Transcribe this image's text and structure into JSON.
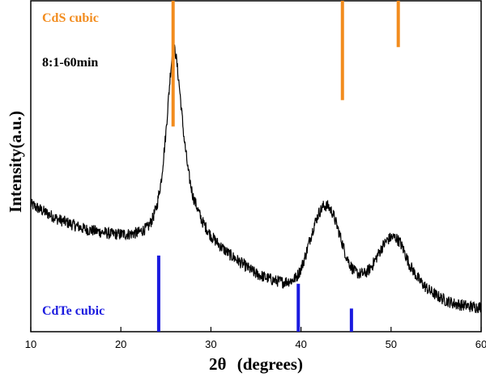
{
  "chart_data": {
    "type": "line",
    "xlabel_prefix": "2θ",
    "xlabel_suffix": "(degrees)",
    "ylabel": "Intensity(a.u.)",
    "xlim": [
      10,
      60
    ],
    "xticks": [
      10,
      20,
      30,
      40,
      50,
      60
    ],
    "ylim": [
      0,
      100
    ],
    "y_tick_labels": false,
    "grid": false,
    "series": [
      {
        "name": "8:1-60min",
        "color": "#000000",
        "points": [
          [
            10,
            38.5
          ],
          [
            11,
            37.0
          ],
          [
            12,
            35.5
          ],
          [
            13,
            34.0
          ],
          [
            14,
            33.0
          ],
          [
            15,
            32.0
          ],
          [
            16,
            31.0
          ],
          [
            17,
            30.5
          ],
          [
            18,
            30.0
          ],
          [
            19,
            29.5
          ],
          [
            20,
            29.5
          ],
          [
            21,
            29.5
          ],
          [
            22,
            30.0
          ],
          [
            23,
            31.5
          ],
          [
            23.5,
            34.0
          ],
          [
            24,
            38.0
          ],
          [
            24.5,
            46.0
          ],
          [
            25,
            60.0
          ],
          [
            25.5,
            78.0
          ],
          [
            25.8,
            86.5
          ],
          [
            26.1,
            84.0
          ],
          [
            26.5,
            74.0
          ],
          [
            27,
            59.0
          ],
          [
            27.5,
            48.0
          ],
          [
            28,
            41.0
          ],
          [
            29,
            33.5
          ],
          [
            30,
            29.0
          ],
          [
            31,
            26.0
          ],
          [
            32,
            23.5
          ],
          [
            33,
            21.5
          ],
          [
            34,
            19.5
          ],
          [
            35,
            17.5
          ],
          [
            36,
            16.5
          ],
          [
            37,
            15.5
          ],
          [
            38,
            15.0
          ],
          [
            39,
            15.5
          ],
          [
            39.5,
            16.5
          ],
          [
            40,
            19.0
          ],
          [
            40.5,
            23.0
          ],
          [
            41,
            28.0
          ],
          [
            41.5,
            32.5
          ],
          [
            42,
            36.0
          ],
          [
            42.5,
            38.0
          ],
          [
            43,
            38.0
          ],
          [
            43.5,
            36.0
          ],
          [
            44,
            32.0
          ],
          [
            44.5,
            27.5
          ],
          [
            45,
            23.0
          ],
          [
            45.5,
            20.0
          ],
          [
            46,
            18.0
          ],
          [
            46.5,
            17.5
          ],
          [
            47,
            17.5
          ],
          [
            47.5,
            18.5
          ],
          [
            48,
            20.5
          ],
          [
            48.5,
            23.0
          ],
          [
            49,
            25.5
          ],
          [
            49.5,
            27.5
          ],
          [
            50,
            28.5
          ],
          [
            50.5,
            28.5
          ],
          [
            51,
            27.0
          ],
          [
            51.5,
            24.0
          ],
          [
            52,
            20.5
          ],
          [
            53,
            16.0
          ],
          [
            54,
            13.0
          ],
          [
            55,
            11.0
          ],
          [
            56,
            9.5
          ],
          [
            57,
            8.5
          ],
          [
            58,
            8.0
          ],
          [
            59,
            7.5
          ],
          [
            60,
            7.5
          ]
        ]
      }
    ],
    "reference_lines": [
      {
        "label": "CdS cubic",
        "color": "#f28c1e",
        "from": "top",
        "peaks": [
          {
            "x": 25.8,
            "length": 38
          },
          {
            "x": 44.6,
            "length": 30
          },
          {
            "x": 50.8,
            "length": 14
          }
        ]
      },
      {
        "label": "CdTe cubic",
        "color": "#1a1adf",
        "from": "bottom",
        "peaks": [
          {
            "x": 24.2,
            "length": 23
          },
          {
            "x": 39.7,
            "length": 14.5
          },
          {
            "x": 45.6,
            "length": 7
          }
        ]
      }
    ],
    "annotations": [
      {
        "text": "8:1-60min",
        "color": "#000000"
      }
    ]
  }
}
